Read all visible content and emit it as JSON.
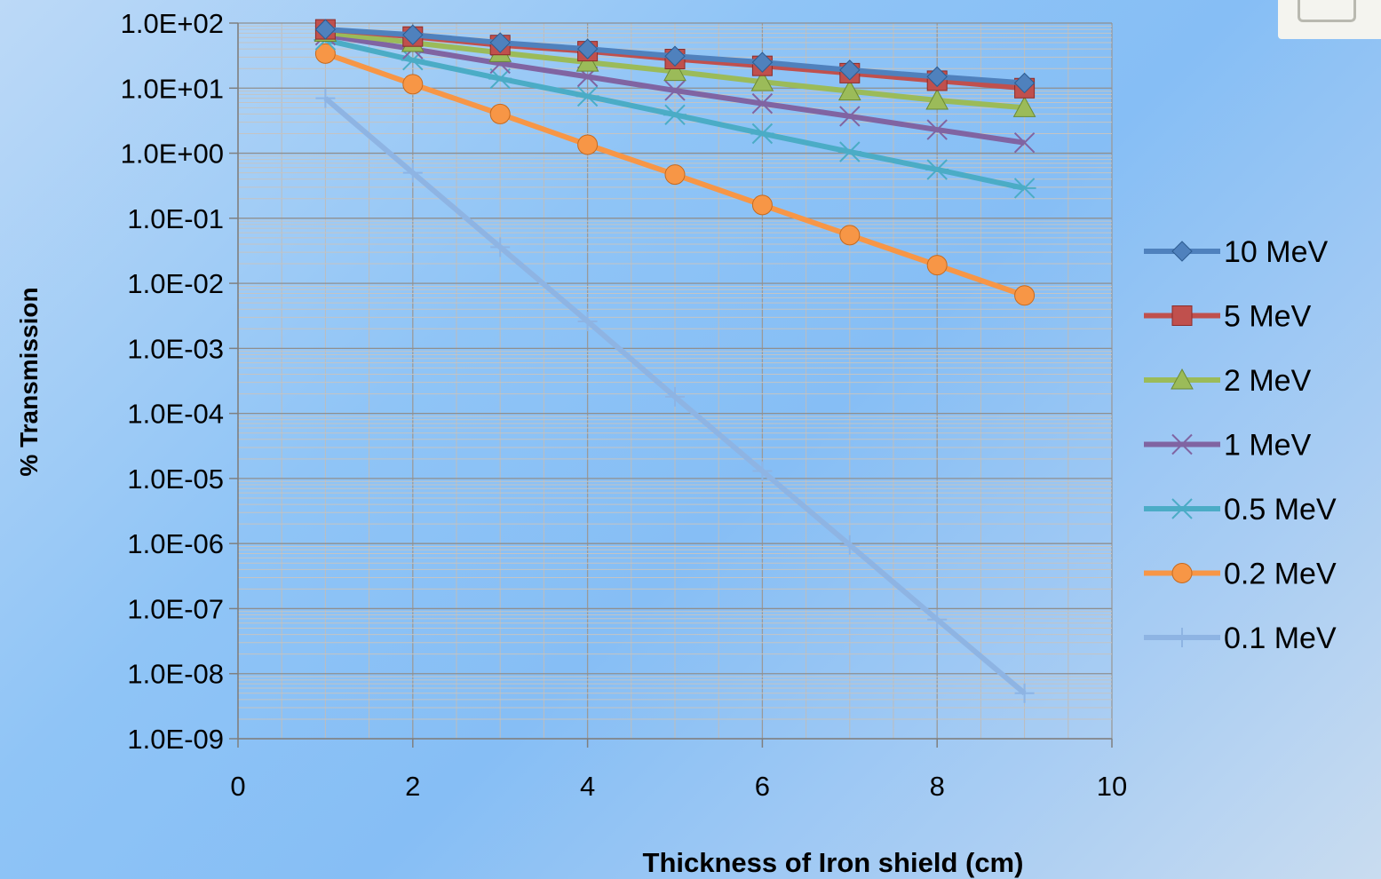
{
  "chart_data": {
    "type": "line",
    "title": "",
    "xlabel": "Thickness of Iron shield (cm)",
    "ylabel": "% Transmission",
    "xlim": [
      0,
      10
    ],
    "ylim": [
      1e-09,
      100
    ],
    "yscale": "log",
    "grid": true,
    "legend_position": "right",
    "x_ticks": [
      "0",
      "2",
      "4",
      "6",
      "8",
      "10"
    ],
    "y_ticks": [
      "1.0E+02",
      "1.0E+01",
      "1.0E+00",
      "1.0E-01",
      "1.0E-02",
      "1.0E-03",
      "1.0E-04",
      "1.0E-05",
      "1.0E-06",
      "1.0E-07",
      "1.0E-08",
      "1.0E-09"
    ],
    "x": [
      1,
      2,
      3,
      4,
      5,
      6,
      7,
      8,
      9
    ],
    "series": [
      {
        "name": "10 MeV",
        "color": "#4f81bd",
        "marker": "diamond",
        "values": [
          80,
          66,
          50,
          40,
          31,
          25,
          19,
          15,
          12
        ]
      },
      {
        "name": "5 MeV",
        "color": "#c0504d",
        "marker": "square",
        "values": [
          80,
          62,
          46,
          37,
          28,
          22,
          17,
          13,
          10
        ]
      },
      {
        "name": "2 MeV",
        "color": "#9bbb59",
        "marker": "triangle",
        "values": [
          72,
          50,
          35,
          25,
          18,
          12.5,
          9,
          6.5,
          5
        ]
      },
      {
        "name": "1 MeV",
        "color": "#8064a2",
        "marker": "x",
        "values": [
          65,
          40,
          24,
          15,
          9.2,
          5.8,
          3.7,
          2.3,
          1.45
        ]
      },
      {
        "name": "0.5 MeV",
        "color": "#4bacc6",
        "marker": "asterisk",
        "values": [
          55,
          27,
          14,
          7.5,
          3.9,
          2.0,
          1.05,
          0.56,
          0.29
        ]
      },
      {
        "name": "0.2 MeV",
        "color": "#f79646",
        "marker": "circle",
        "values": [
          34,
          11.5,
          4.0,
          1.35,
          0.47,
          0.16,
          0.055,
          0.019,
          0.0065
        ]
      },
      {
        "name": "0.1 MeV",
        "color": "#8eb4e3",
        "marker": "plus",
        "values": [
          7.0,
          0.5,
          0.036,
          0.0026,
          0.00018,
          1.3e-05,
          9.5e-07,
          6.8e-08,
          5e-09
        ]
      }
    ]
  }
}
